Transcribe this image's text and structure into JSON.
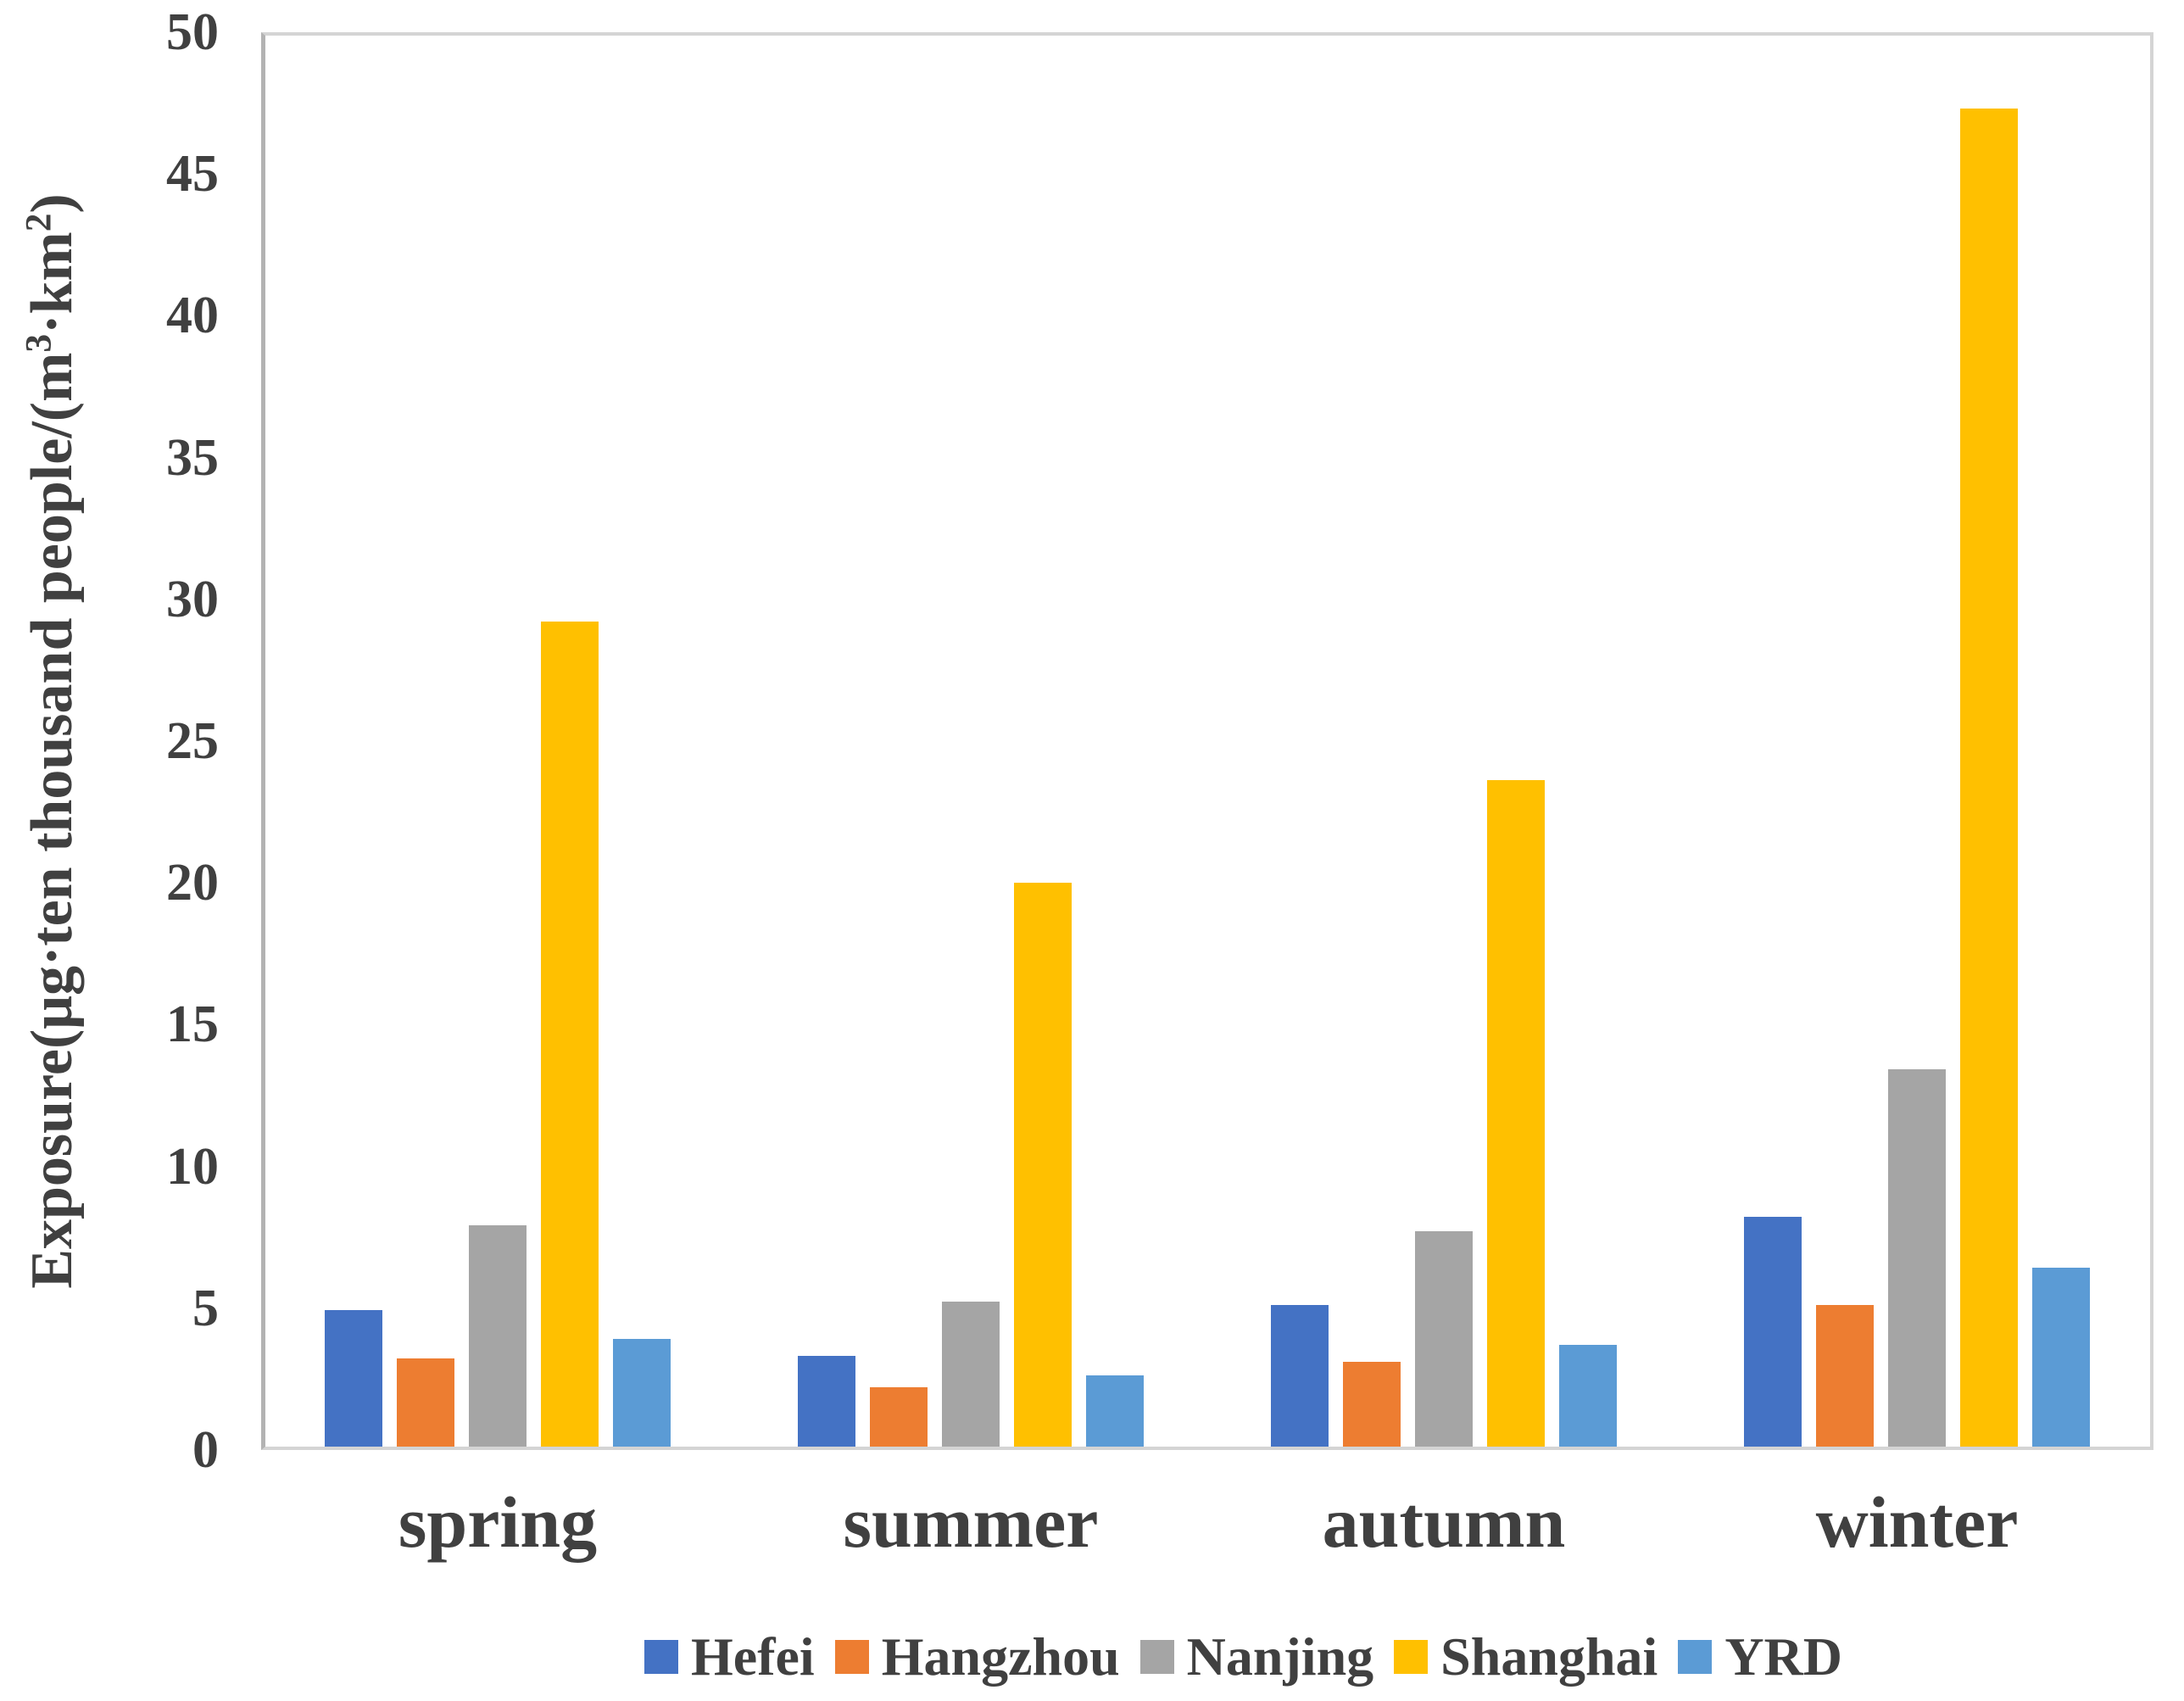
{
  "chart_data": {
    "type": "bar",
    "title": "",
    "ylabel": "Exposure(μg·ten thousand people/(m³·km²)",
    "ylabel_segments": [
      {
        "text": "Exposure(μg·ten thousand people/(m"
      },
      {
        "text": "3",
        "sup": true
      },
      {
        "text": "·km"
      },
      {
        "text": "2",
        "sup": true
      },
      {
        "text": ")"
      }
    ],
    "xlabel": "",
    "categories": [
      "spring",
      "summer",
      "autumn",
      "winter"
    ],
    "series": [
      {
        "name": "Hefei",
        "color": "#4472C4",
        "values": [
          4.8,
          3.2,
          5.0,
          8.1
        ]
      },
      {
        "name": "Hangzhou",
        "color": "#ED7D31",
        "values": [
          3.1,
          2.1,
          3.0,
          5.0
        ]
      },
      {
        "name": "Nanjing",
        "color": "#A5A5A5",
        "values": [
          7.8,
          5.1,
          7.6,
          13.3
        ]
      },
      {
        "name": "Shanghai",
        "color": "#FFC000",
        "values": [
          29.1,
          19.9,
          23.5,
          47.2
        ]
      },
      {
        "name": "YRD",
        "color": "#5B9BD5",
        "values": [
          3.8,
          2.5,
          3.6,
          6.3
        ]
      }
    ],
    "ylim": [
      0,
      50
    ],
    "yticks": [
      0,
      5,
      10,
      15,
      20,
      25,
      30,
      35,
      40,
      45,
      50
    ],
    "grid": false,
    "legend_position": "bottom",
    "text_color": "#404040"
  }
}
